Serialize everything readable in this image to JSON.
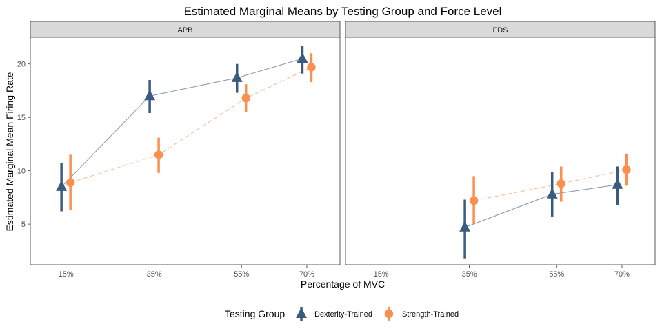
{
  "chart_data": {
    "type": "line",
    "title": "Estimated Marginal Means by Testing Group and Force Level",
    "xlabel": "Percentage of MVC",
    "ylabel": "Estimated Marginal Mean Firing Rate",
    "categories": [
      "15%",
      "35%",
      "55%",
      "70%"
    ],
    "y_ticks": [
      5,
      10,
      15,
      20
    ],
    "ylim": [
      1.2,
      22.5
    ],
    "legend": {
      "title": "Testing Group",
      "position": "bottom"
    },
    "series": [
      {
        "name": "Dexterity-Trained",
        "color": "#3a5a80",
        "marker": "triangle",
        "line": "solid"
      },
      {
        "name": "Strength-Trained",
        "color": "#fa8f4f",
        "marker": "circle",
        "line": "dashed"
      }
    ],
    "panels": [
      {
        "name": "APB",
        "groups": [
          {
            "series": "Dexterity-Trained",
            "x": [
              "15%",
              "35%",
              "55%",
              "70%"
            ],
            "y": [
              8.5,
              17.0,
              18.7,
              20.5
            ],
            "lower": [
              6.2,
              15.4,
              17.3,
              19.1
            ],
            "upper": [
              10.7,
              18.5,
              20.0,
              21.7
            ]
          },
          {
            "series": "Strength-Trained",
            "x": [
              "15%",
              "35%",
              "55%",
              "70%"
            ],
            "y": [
              8.9,
              11.5,
              16.8,
              19.7
            ],
            "lower": [
              6.3,
              9.8,
              15.5,
              18.3
            ],
            "upper": [
              11.5,
              13.1,
              18.1,
              21.0
            ]
          }
        ]
      },
      {
        "name": "FDS",
        "groups": [
          {
            "series": "Dexterity-Trained",
            "x": [
              "35%",
              "55%",
              "70%"
            ],
            "y": [
              4.7,
              7.8,
              8.7
            ],
            "lower": [
              1.8,
              5.7,
              6.8
            ],
            "upper": [
              7.3,
              9.9,
              10.4
            ]
          },
          {
            "series": "Strength-Trained",
            "x": [
              "35%",
              "55%",
              "70%"
            ],
            "y": [
              7.2,
              8.8,
              10.1
            ],
            "lower": [
              5.0,
              7.1,
              8.6
            ],
            "upper": [
              9.5,
              10.4,
              11.6
            ]
          }
        ]
      }
    ]
  }
}
